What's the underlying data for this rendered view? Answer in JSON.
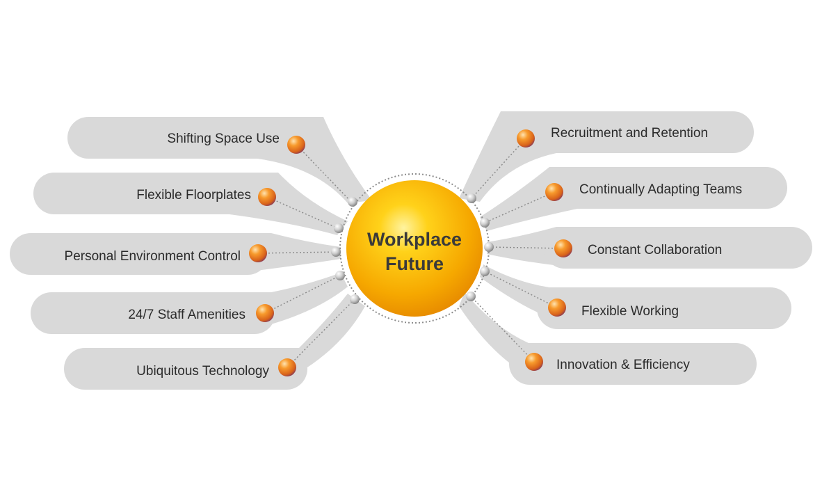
{
  "center": {
    "line1": "Workplace",
    "line2": "Future"
  },
  "left_items": [
    {
      "label": "Shifting Space Use"
    },
    {
      "label": "Flexible Floorplates"
    },
    {
      "label": "Personal Environment Control"
    },
    {
      "label": "24/7 Staff Amenities"
    },
    {
      "label": "Ubiquitous Technology"
    }
  ],
  "right_items": [
    {
      "label": "Recruitment and Retention"
    },
    {
      "label": "Continually Adapting Teams"
    },
    {
      "label": "Constant Collaboration"
    },
    {
      "label": "Flexible Working"
    },
    {
      "label": "Innovation & Efficiency"
    }
  ],
  "colors": {
    "pill": "#d9d9d9",
    "sun": "#f6a800",
    "orb": "#ef7d1a",
    "dotted": "#8c8c8c",
    "text": "#2b2b2b"
  }
}
